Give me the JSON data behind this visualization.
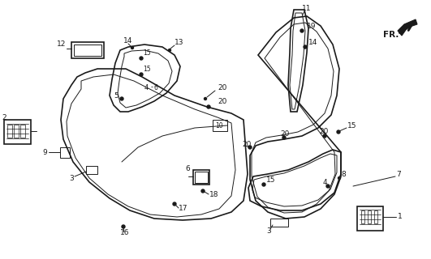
{
  "bg_color": "#ffffff",
  "line_color": "#1a1a1a",
  "lw_main": 1.2,
  "lw_thin": 0.7
}
